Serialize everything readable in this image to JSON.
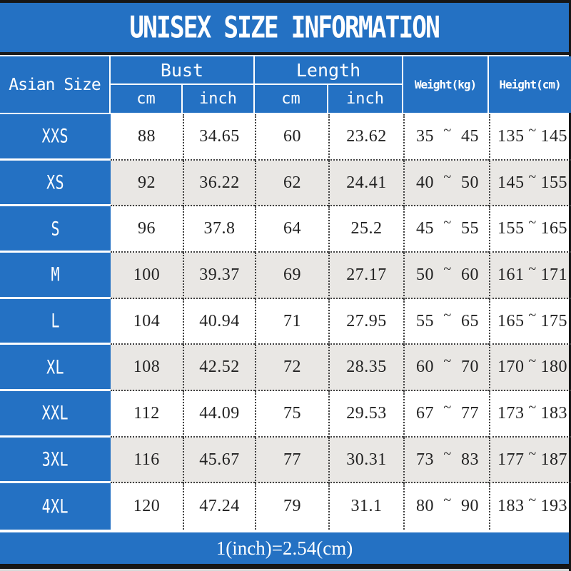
{
  "title": "UNISEX SIZE INFORMATION",
  "colors": {
    "blue": "#2471c3",
    "alt_row": "#e9e7e4",
    "bar": "#161616"
  },
  "table": {
    "corner_header": "Asian Size",
    "bust_group": "Bust",
    "length_group": "Length",
    "sub_cm": "cm",
    "sub_inch": "inch",
    "weight_header": "Weight(kg)",
    "height_header": "Height(cm)",
    "tilde": "~",
    "rows": [
      {
        "size": "XXS",
        "bust_cm": "88",
        "bust_inch": "34.65",
        "length_cm": "60",
        "length_inch": "23.62",
        "weight_min": "35",
        "weight_max": "45",
        "height_min": "135",
        "height_max": "145"
      },
      {
        "size": "XS",
        "bust_cm": "92",
        "bust_inch": "36.22",
        "length_cm": "62",
        "length_inch": "24.41",
        "weight_min": "40",
        "weight_max": "50",
        "height_min": "145",
        "height_max": "155"
      },
      {
        "size": "S",
        "bust_cm": "96",
        "bust_inch": "37.8",
        "length_cm": "64",
        "length_inch": "25.2",
        "weight_min": "45",
        "weight_max": "55",
        "height_min": "155",
        "height_max": "165"
      },
      {
        "size": "M",
        "bust_cm": "100",
        "bust_inch": "39.37",
        "length_cm": "69",
        "length_inch": "27.17",
        "weight_min": "50",
        "weight_max": "60",
        "height_min": "161",
        "height_max": "171"
      },
      {
        "size": "L",
        "bust_cm": "104",
        "bust_inch": "40.94",
        "length_cm": "71",
        "length_inch": "27.95",
        "weight_min": "55",
        "weight_max": "65",
        "height_min": "165",
        "height_max": "175"
      },
      {
        "size": "XL",
        "bust_cm": "108",
        "bust_inch": "42.52",
        "length_cm": "72",
        "length_inch": "28.35",
        "weight_min": "60",
        "weight_max": "70",
        "height_min": "170",
        "height_max": "180"
      },
      {
        "size": "XXL",
        "bust_cm": "112",
        "bust_inch": "44.09",
        "length_cm": "75",
        "length_inch": "29.53",
        "weight_min": "67",
        "weight_max": "77",
        "height_min": "173",
        "height_max": "183"
      },
      {
        "size": "3XL",
        "bust_cm": "116",
        "bust_inch": "45.67",
        "length_cm": "77",
        "length_inch": "30.31",
        "weight_min": "73",
        "weight_max": "83",
        "height_min": "177",
        "height_max": "187"
      },
      {
        "size": "4XL",
        "bust_cm": "120",
        "bust_inch": "47.24",
        "length_cm": "79",
        "length_inch": "31.1",
        "weight_min": "80",
        "weight_max": "90",
        "height_min": "183",
        "height_max": "193"
      }
    ]
  },
  "footer": {
    "note": "1(inch)=2.54(cm)"
  },
  "chart_data": {
    "type": "table",
    "title": "UNISEX SIZE INFORMATION",
    "columns": [
      "Asian Size",
      "Bust cm",
      "Bust inch",
      "Length cm",
      "Length inch",
      "Weight(kg)",
      "Height(cm)"
    ],
    "rows": [
      [
        "XXS",
        88,
        34.65,
        60,
        23.62,
        "35~45",
        "135~145"
      ],
      [
        "XS",
        92,
        36.22,
        62,
        24.41,
        "40~50",
        "145~155"
      ],
      [
        "S",
        96,
        37.8,
        64,
        25.2,
        "45~55",
        "155~165"
      ],
      [
        "M",
        100,
        39.37,
        69,
        27.17,
        "50~60",
        "161~171"
      ],
      [
        "L",
        104,
        40.94,
        71,
        27.95,
        "55~65",
        "165~175"
      ],
      [
        "XL",
        108,
        42.52,
        72,
        28.35,
        "60~70",
        "170~180"
      ],
      [
        "XXL",
        112,
        44.09,
        75,
        29.53,
        "67~77",
        "173~183"
      ],
      [
        "3XL",
        116,
        45.67,
        77,
        30.31,
        "73~83",
        "177~187"
      ],
      [
        "4XL",
        120,
        47.24,
        79,
        31.1,
        "80~90",
        "183~193"
      ]
    ],
    "note": "1(inch)=2.54(cm)",
    "legend_position": "none",
    "grid": "dotted-cell-separators"
  }
}
